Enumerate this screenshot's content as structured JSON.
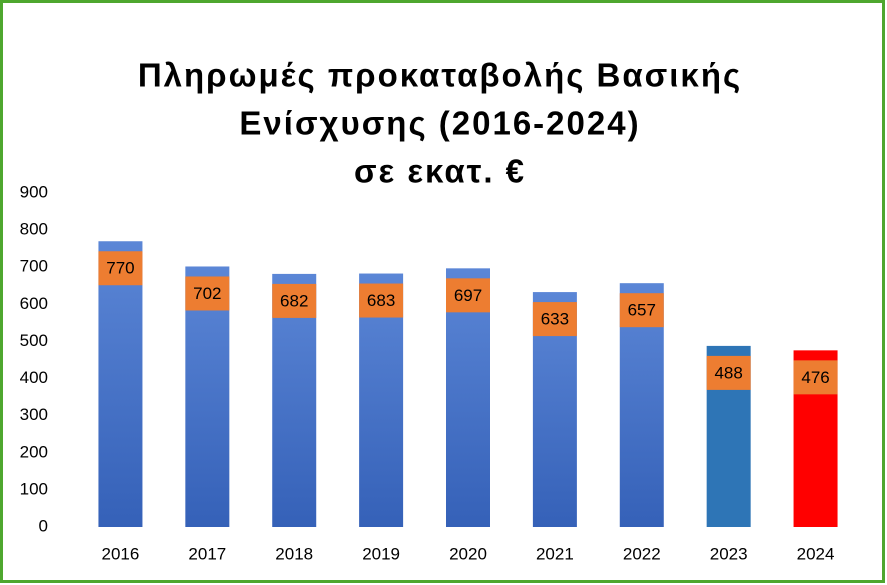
{
  "chart_data": {
    "type": "bar",
    "title": [
      "Πληρωμές προκαταβολής Βασικής",
      "Ενίσχυσης (2016-2024)",
      "σε εκατ. €"
    ],
    "categories": [
      "2016",
      "2017",
      "2018",
      "2019",
      "2020",
      "2021",
      "2022",
      "2023",
      "2024"
    ],
    "values": [
      770,
      702,
      682,
      683,
      697,
      633,
      657,
      488,
      476
    ],
    "colors": [
      "#4472c4",
      "#4472c4",
      "#4472c4",
      "#4472c4",
      "#4472c4",
      "#4472c4",
      "#4472c4",
      "#2e75b6",
      "#ff0000"
    ],
    "label_color": "#ed7d31",
    "ylim": [
      0,
      900
    ],
    "yticks": [
      0,
      100,
      200,
      300,
      400,
      500,
      600,
      700,
      800,
      900
    ],
    "grid": false
  }
}
